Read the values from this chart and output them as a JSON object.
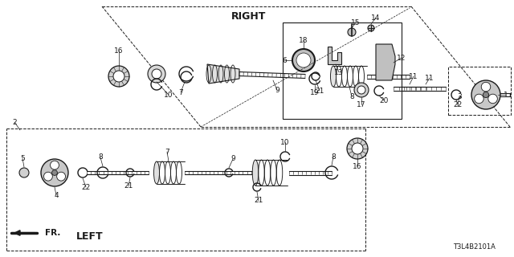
{
  "bg_color": "#ffffff",
  "line_color": "#1a1a1a",
  "text_color": "#1a1a1a",
  "diagram_id": "T3L4B2101A",
  "right_label": "RIGHT",
  "left_label": "LEFT",
  "fr_label": "FR."
}
